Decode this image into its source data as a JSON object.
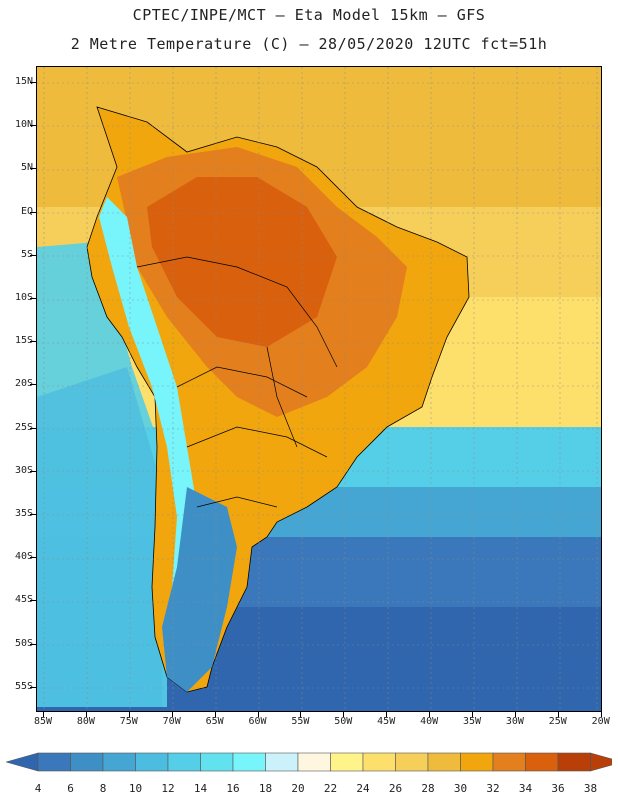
{
  "header": {
    "line1": "CPTEC/INPE/MCT –  Eta Model 15km – GFS",
    "line2": "2 Metre Temperature (C) – 28/05/2020 12UTC fct=51h"
  },
  "axes": {
    "lat_labels": [
      "15N",
      "10N",
      "5N",
      "EQ",
      "5S",
      "10S",
      "15S",
      "20S",
      "25S",
      "30S",
      "35S",
      "40S",
      "45S",
      "50S",
      "55S"
    ],
    "lon_labels": [
      "85W",
      "80W",
      "75W",
      "70W",
      "65W",
      "60W",
      "55W",
      "50W",
      "45W",
      "40W",
      "35W",
      "30W",
      "25W",
      "20W"
    ]
  },
  "legend": {
    "values": [
      "4",
      "6",
      "8",
      "10",
      "12",
      "14",
      "16",
      "18",
      "20",
      "22",
      "24",
      "26",
      "28",
      "30",
      "32",
      "34",
      "36",
      "38"
    ],
    "colors": [
      "#2f66ae",
      "#3a78bb",
      "#3f8fc7",
      "#45a5d3",
      "#4cbde0",
      "#55cfe7",
      "#62e2ef",
      "#78f4fb",
      "#cbf2fb",
      "#fff6df",
      "#fef48a",
      "#fde06c",
      "#f6cf5b",
      "#eebb3d",
      "#f1a60e",
      "#e47f1d",
      "#d9600d",
      "#b84008"
    ]
  },
  "map_colors": {
    "ocean_south_deep": "#2f66ae",
    "ocean_south": "#3a78bb",
    "ocean_mid": "#45a5d3",
    "ocean_light": "#55cfe7",
    "ocean_warm": "#fde06c",
    "ocean_warmer": "#f6cf5b",
    "ocean_tropical": "#eebb3d",
    "land_hot": "#d9600d",
    "land_warm": "#e47f1d",
    "land_mild": "#f1a60e",
    "andes": "#78f4fb",
    "patagonia": "#3f8fc7"
  }
}
